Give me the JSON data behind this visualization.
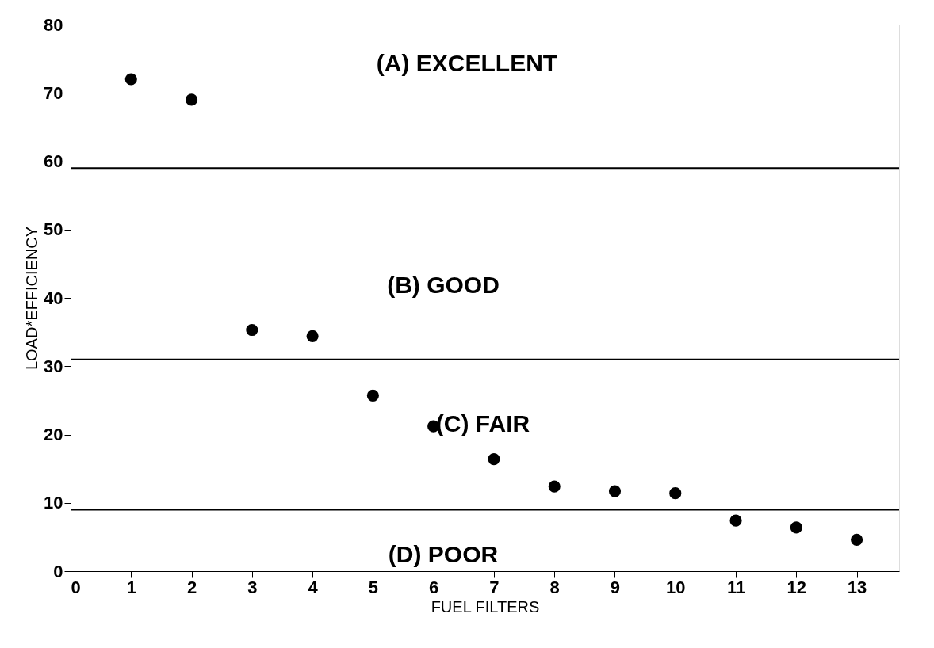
{
  "chart_data": {
    "type": "scatter",
    "xlabel": "FUEL FILTERS",
    "ylabel": "LOAD*EFFICIENCY",
    "x": [
      1,
      2,
      3,
      4,
      5,
      6,
      7,
      8,
      9,
      10,
      11,
      12,
      13
    ],
    "series": [
      {
        "color": "#000000",
        "values": [
          72,
          69,
          35.3,
          34.4,
          25.7,
          21.2,
          16.4,
          12.4,
          11.7,
          11.4,
          7.4,
          6.4,
          4.6
        ]
      }
    ],
    "xlim": [
      0,
      13.7
    ],
    "xticks": [
      0,
      1,
      2,
      3,
      4,
      5,
      6,
      7,
      8,
      9,
      10,
      11,
      12,
      13
    ],
    "ylim": [
      0,
      80
    ],
    "yticks": [
      0,
      10,
      20,
      30,
      40,
      50,
      60,
      70,
      80
    ],
    "ref_lines": [
      {
        "axis": "y",
        "value": 59,
        "color": "#000000"
      },
      {
        "axis": "y",
        "value": 31,
        "color": "#000000"
      },
      {
        "axis": "y",
        "value": 9,
        "color": "#000000"
      }
    ],
    "annotations": [
      "(A)  EXCELLENT",
      "(B)  GOOD",
      "(C)  FAIR",
      "(D)  POOR"
    ],
    "marker": "circle",
    "grid": false
  }
}
